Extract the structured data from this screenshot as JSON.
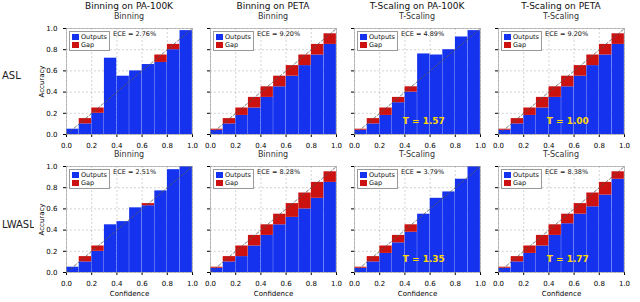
{
  "row_labels": [
    "ASL",
    "LWASL"
  ],
  "chart_data": [
    {
      "type": "bar",
      "title": "Binning on PA-100K",
      "subtitle": "Binning",
      "ylabel": "Accuracy",
      "x": [
        0.05,
        0.15,
        0.25,
        0.35,
        0.45,
        0.55,
        0.65,
        0.75,
        0.85,
        0.95
      ],
      "xlim": [
        0,
        1
      ],
      "ylim": [
        0,
        1
      ],
      "xticks": [
        {
          "value": 0,
          "label": "0.0"
        },
        0.2,
        0.4,
        0.6,
        0.8,
        {
          "value": 1,
          "label": "1.0"
        }
      ],
      "yticks": [
        {
          "value": 0,
          "label": "0.0"
        },
        0.2,
        0.4,
        0.6,
        0.8,
        {
          "value": 1,
          "label": "1.0"
        }
      ],
      "grid": true,
      "stacked": true,
      "legend": "upper left",
      "annotations": [
        {
          "text": "ECE = 2.76%"
        }
      ],
      "series": [
        {
          "name": "Outputs",
          "color": "#1533ee",
          "values": [
            0.05,
            0.1,
            0.2,
            0.72,
            0.55,
            0.6,
            0.66,
            0.68,
            0.8,
            0.98
          ]
        },
        {
          "name": "Gap",
          "color": "#cc1111",
          "values": [
            null,
            0.05,
            0.05,
            null,
            null,
            null,
            null,
            0.07,
            0.05,
            null
          ]
        },
        {
          "type": "line",
          "line_style": "dashed",
          "color": "#555555",
          "x": [
            0,
            1
          ],
          "values": [
            0,
            1
          ]
        }
      ]
    },
    {
      "type": "bar",
      "title": "Binning on PETA",
      "subtitle": "Binning",
      "x": [
        0.05,
        0.15,
        0.25,
        0.35,
        0.45,
        0.55,
        0.65,
        0.75,
        0.85,
        0.95
      ],
      "xlim": [
        0,
        1
      ],
      "ylim": [
        0,
        1
      ],
      "xticks": [
        {
          "value": 0,
          "label": "0.0"
        },
        0.2,
        0.4,
        0.6,
        0.8,
        {
          "value": 1,
          "label": "1.0"
        }
      ],
      "yticks": [
        {
          "value": 0,
          "label": "0.0"
        },
        0.2,
        0.4,
        0.6,
        0.8,
        {
          "value": 1,
          "label": "1.0"
        }
      ],
      "grid": true,
      "stacked": true,
      "legend": "upper left",
      "tick_labels": "x",
      "annotations": [
        {
          "text": "ECE = 9.20%"
        }
      ],
      "series": [
        {
          "name": "Outputs",
          "color": "#1533ee",
          "values": [
            0.04,
            0.1,
            0.18,
            0.25,
            0.35,
            0.45,
            0.55,
            0.65,
            0.75,
            0.85
          ]
        },
        {
          "name": "Gap",
          "color": "#cc1111",
          "values": [
            0.01,
            0.05,
            0.07,
            0.1,
            0.1,
            0.1,
            0.1,
            0.1,
            0.1,
            0.1
          ]
        },
        {
          "type": "line",
          "line_style": "dashed",
          "color": "#555555",
          "x": [
            0,
            1
          ],
          "values": [
            0,
            1
          ]
        }
      ]
    },
    {
      "type": "bar",
      "title": "T-Scaling on PA-100K",
      "subtitle": "T-Scaling",
      "x": [
        0.05,
        0.15,
        0.25,
        0.35,
        0.45,
        0.55,
        0.65,
        0.75,
        0.85,
        0.95
      ],
      "xlim": [
        0,
        1
      ],
      "ylim": [
        0,
        1
      ],
      "xticks": [
        {
          "value": 0,
          "label": "0.0"
        },
        0.2,
        0.4,
        0.6,
        0.8,
        {
          "value": 1,
          "label": "1.0"
        }
      ],
      "yticks": [
        {
          "value": 0,
          "label": "0.0"
        },
        0.2,
        0.4,
        0.6,
        0.8,
        {
          "value": 1,
          "label": "1.0"
        }
      ],
      "grid": true,
      "stacked": true,
      "legend": "upper left",
      "tick_labels": "x",
      "annotations": [
        {
          "text": "ECE = 4.89%"
        },
        {
          "text": "T = 1.57",
          "color": "#FFD700"
        }
      ],
      "series": [
        {
          "name": "Outputs",
          "color": "#1533ee",
          "values": [
            0.04,
            0.1,
            0.18,
            0.3,
            0.4,
            0.76,
            0.75,
            0.8,
            0.92,
            0.98
          ]
        },
        {
          "name": "Gap",
          "color": "#cc1111",
          "values": [
            0.01,
            0.05,
            0.07,
            0.05,
            0.05,
            null,
            null,
            null,
            null,
            null
          ]
        },
        {
          "type": "line",
          "line_style": "dashed",
          "color": "#555555",
          "x": [
            0,
            1
          ],
          "values": [
            0,
            1
          ]
        }
      ]
    },
    {
      "type": "bar",
      "title": "T-Scaling on PETA",
      "subtitle": "T-Scaling",
      "x": [
        0.05,
        0.15,
        0.25,
        0.35,
        0.45,
        0.55,
        0.65,
        0.75,
        0.85,
        0.95
      ],
      "xlim": [
        0,
        1
      ],
      "ylim": [
        0,
        1
      ],
      "xticks": [
        {
          "value": 0,
          "label": "0.0"
        },
        0.2,
        0.4,
        0.6,
        0.8,
        {
          "value": 1,
          "label": "1.0"
        }
      ],
      "yticks": [
        {
          "value": 0,
          "label": "0.0"
        },
        0.2,
        0.4,
        0.6,
        0.8,
        {
          "value": 1,
          "label": "1.0"
        }
      ],
      "grid": true,
      "stacked": true,
      "legend": "upper left",
      "tick_labels": "x",
      "annotations": [
        {
          "text": "ECE = 9.20%"
        },
        {
          "text": "T = 1.00",
          "color": "#FFD700"
        }
      ],
      "series": [
        {
          "name": "Outputs",
          "color": "#1533ee",
          "values": [
            0.04,
            0.1,
            0.18,
            0.25,
            0.35,
            0.45,
            0.55,
            0.65,
            0.75,
            0.85
          ]
        },
        {
          "name": "Gap",
          "color": "#cc1111",
          "values": [
            0.01,
            0.05,
            0.07,
            0.1,
            0.1,
            0.1,
            0.1,
            0.1,
            0.1,
            0.1
          ]
        },
        {
          "type": "line",
          "line_style": "dashed",
          "color": "#555555",
          "x": [
            0,
            1
          ],
          "values": [
            0,
            1
          ]
        }
      ]
    },
    {
      "type": "bar",
      "subtitle": "Binning",
      "ylabel": "Accuracy",
      "xlabel": "Confidence",
      "x": [
        0.05,
        0.15,
        0.25,
        0.35,
        0.45,
        0.55,
        0.65,
        0.75,
        0.85,
        0.95
      ],
      "xlim": [
        0,
        1
      ],
      "ylim": [
        0,
        1
      ],
      "xticks": [
        {
          "value": 0,
          "label": "0.0"
        },
        0.2,
        0.4,
        0.6,
        0.8,
        {
          "value": 1,
          "label": "1.0"
        }
      ],
      "yticks": [
        {
          "value": 0,
          "label": "0.0"
        },
        0.2,
        0.4,
        0.6,
        0.8,
        {
          "value": 1,
          "label": "1.0"
        }
      ],
      "grid": true,
      "stacked": true,
      "legend": "upper left",
      "annotations": [
        {
          "text": "ECE = 2.51%"
        }
      ],
      "series": [
        {
          "name": "Outputs",
          "color": "#1533ee",
          "values": [
            0.05,
            0.1,
            0.2,
            0.45,
            0.48,
            0.61,
            0.63,
            0.77,
            0.97,
            1.0
          ]
        },
        {
          "name": "Gap",
          "color": "#cc1111",
          "values": [
            null,
            0.05,
            0.05,
            null,
            null,
            null,
            0.02,
            null,
            null,
            null
          ]
        },
        {
          "type": "line",
          "line_style": "dashed",
          "color": "#555555",
          "x": [
            0,
            1
          ],
          "values": [
            0,
            1
          ]
        }
      ]
    },
    {
      "type": "bar",
      "subtitle": "Binning",
      "xlabel": "Confidence",
      "x": [
        0.05,
        0.15,
        0.25,
        0.35,
        0.45,
        0.55,
        0.65,
        0.75,
        0.85,
        0.95
      ],
      "xlim": [
        0,
        1
      ],
      "ylim": [
        0,
        1
      ],
      "xticks": [
        {
          "value": 0,
          "label": "0.0"
        },
        0.2,
        0.4,
        0.6,
        0.8,
        {
          "value": 1,
          "label": "1.0"
        }
      ],
      "yticks": [
        {
          "value": 0,
          "label": "0.0"
        },
        0.2,
        0.4,
        0.6,
        0.8,
        {
          "value": 1,
          "label": "1.0"
        }
      ],
      "grid": true,
      "stacked": true,
      "legend": "upper left",
      "tick_labels": "x",
      "annotations": [
        {
          "text": "ECE = 8.28%"
        }
      ],
      "series": [
        {
          "name": "Outputs",
          "color": "#1533ee",
          "values": [
            0.04,
            0.1,
            0.15,
            0.25,
            0.35,
            0.45,
            0.52,
            0.6,
            0.7,
            0.85
          ]
        },
        {
          "name": "Gap",
          "color": "#cc1111",
          "values": [
            0.01,
            0.05,
            0.1,
            0.1,
            0.1,
            0.1,
            0.13,
            0.15,
            0.15,
            0.1
          ]
        },
        {
          "type": "line",
          "line_style": "dashed",
          "color": "#555555",
          "x": [
            0,
            1
          ],
          "values": [
            0,
            1
          ]
        }
      ]
    },
    {
      "type": "bar",
      "subtitle": "T-Scaling",
      "xlabel": "Confidence",
      "x": [
        0.05,
        0.15,
        0.25,
        0.35,
        0.45,
        0.55,
        0.65,
        0.75,
        0.85,
        0.95
      ],
      "xlim": [
        0,
        1
      ],
      "ylim": [
        0,
        1
      ],
      "xticks": [
        {
          "value": 0,
          "label": "0.0"
        },
        0.2,
        0.4,
        0.6,
        0.8,
        {
          "value": 1,
          "label": "1.0"
        }
      ],
      "yticks": [
        {
          "value": 0,
          "label": "0.0"
        },
        0.2,
        0.4,
        0.6,
        0.8,
        {
          "value": 1,
          "label": "1.0"
        }
      ],
      "grid": true,
      "stacked": true,
      "legend": "upper left",
      "tick_labels": "x",
      "annotations": [
        {
          "text": "ECE = 3.79%"
        },
        {
          "text": "T = 1.35",
          "color": "#FFD700"
        }
      ],
      "series": [
        {
          "name": "Outputs",
          "color": "#1533ee",
          "values": [
            0.04,
            0.1,
            0.18,
            0.28,
            0.38,
            0.55,
            0.7,
            0.76,
            0.88,
            1.0
          ]
        },
        {
          "name": "Gap",
          "color": "#cc1111",
          "values": [
            0.01,
            0.05,
            0.07,
            0.07,
            0.07,
            null,
            null,
            null,
            null,
            null
          ]
        },
        {
          "type": "line",
          "line_style": "dashed",
          "color": "#555555",
          "x": [
            0,
            1
          ],
          "values": [
            0,
            1
          ]
        }
      ]
    },
    {
      "type": "bar",
      "subtitle": "T-Scaling",
      "xlabel": "Confidence",
      "x": [
        0.05,
        0.15,
        0.25,
        0.35,
        0.45,
        0.55,
        0.65,
        0.75,
        0.85,
        0.95
      ],
      "xlim": [
        0,
        1
      ],
      "ylim": [
        0,
        1
      ],
      "xticks": [
        {
          "value": 0,
          "label": "0.0"
        },
        0.2,
        0.4,
        0.6,
        0.8,
        {
          "value": 1,
          "label": "1.0"
        }
      ],
      "yticks": [
        {
          "value": 0,
          "label": "0.0"
        },
        0.2,
        0.4,
        0.6,
        0.8,
        {
          "value": 1,
          "label": "1.0"
        }
      ],
      "grid": true,
      "stacked": true,
      "legend": "upper left",
      "tick_labels": "x",
      "annotations": [
        {
          "text": "ECE = 8.38%"
        },
        {
          "text": "T = 1.77",
          "color": "#FFD700"
        }
      ],
      "series": [
        {
          "name": "Outputs",
          "color": "#1533ee",
          "values": [
            0.04,
            0.1,
            0.18,
            0.25,
            0.35,
            0.46,
            0.55,
            0.62,
            0.73,
            0.88
          ]
        },
        {
          "name": "Gap",
          "color": "#cc1111",
          "values": [
            0.01,
            0.05,
            0.07,
            0.1,
            0.1,
            0.09,
            0.1,
            0.13,
            0.12,
            0.07
          ]
        },
        {
          "type": "line",
          "line_style": "dashed",
          "color": "#555555",
          "x": [
            0,
            1
          ],
          "values": [
            0,
            1
          ]
        }
      ]
    }
  ]
}
